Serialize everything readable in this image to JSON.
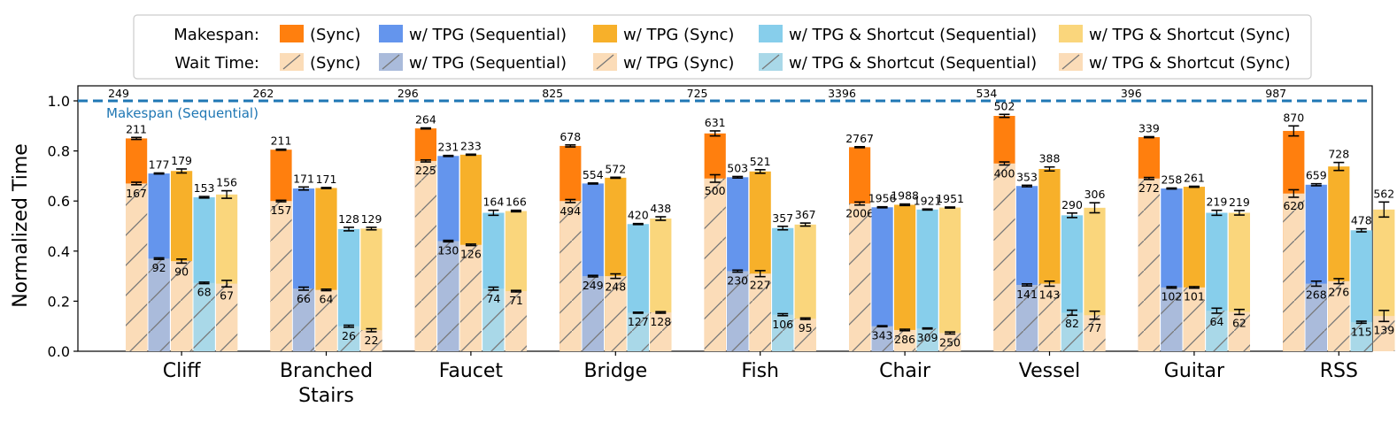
{
  "chart_data": {
    "type": "bar",
    "ylabel": "Normalized Time",
    "ylim": [
      0,
      1.05
    ],
    "yticks": [
      "0.0",
      "0.2",
      "0.4",
      "0.6",
      "0.8",
      "1.0"
    ],
    "grid": false,
    "legend_position": "top-center",
    "legend": {
      "makespan_label": "Makespan:",
      "wait_label": "Wait Time:",
      "entries": [
        "(Sync)",
        "w/ TPG (Sequential)",
        "w/ TPG (Sync)",
        "w/ TPG & Shortcut (Sequential)",
        "w/ TPG & Shortcut (Sync)"
      ]
    },
    "reference_line": {
      "label": "Makespan (Sequential)",
      "value": 1.0,
      "color": "#1f77b4"
    },
    "categories": [
      "Cliff",
      "Branched\nStairs",
      "Faucet",
      "Bridge",
      "Fish",
      "Chair",
      "Vessel",
      "Guitar",
      "RSS"
    ],
    "sequential_makespan": [
      249,
      262,
      296,
      825,
      725,
      3396,
      534,
      396,
      987
    ],
    "colors": [
      "#ff7f0e",
      "#6495ed",
      "#f7b02a",
      "#87ceeb",
      "#fad67c"
    ],
    "wait_colors": [
      "#fbdcb8",
      "#aabbdb",
      "#fbdcb8",
      "#a9d8e8",
      "#fbdcb8"
    ],
    "series": [
      {
        "name": "(Sync)",
        "makespan": [
          0.85,
          0.805,
          0.89,
          0.82,
          0.87,
          0.815,
          0.94,
          0.855,
          0.88
        ],
        "makespan_labels": [
          "211",
          "211",
          "264",
          "678",
          "631",
          "2767",
          "502",
          "339",
          "870"
        ],
        "makespan_err": [
          0.004,
          0.002,
          0.002,
          0.004,
          0.01,
          0.002,
          0.006,
          0.002,
          0.02
        ],
        "wait": [
          0.67,
          0.6,
          0.76,
          0.6,
          0.69,
          0.59,
          0.75,
          0.69,
          0.63
        ],
        "wait_labels": [
          "167",
          "157",
          "225",
          "494",
          "500",
          "2006",
          "400",
          "272",
          "620"
        ],
        "wait_err": [
          0.005,
          0.003,
          0.004,
          0.006,
          0.015,
          0.006,
          0.006,
          0.004,
          0.015
        ]
      },
      {
        "name": "w/ TPG (Sequential)",
        "makespan": [
          0.71,
          0.65,
          0.78,
          0.67,
          0.695,
          0.575,
          0.66,
          0.65,
          0.665
        ],
        "makespan_labels": [
          "177",
          "171",
          "231",
          "554",
          "503",
          "1956",
          "353",
          "258",
          "659"
        ],
        "makespan_err": [
          0.002,
          0.006,
          0.002,
          0.002,
          0.003,
          0.002,
          0.003,
          0.002,
          0.004
        ],
        "wait": [
          0.37,
          0.25,
          0.44,
          0.3,
          0.32,
          0.1,
          0.265,
          0.255,
          0.27
        ],
        "wait_labels": [
          "92",
          "66",
          "130",
          "249",
          "230",
          "343",
          "141",
          "102",
          "268"
        ],
        "wait_err": [
          0.003,
          0.006,
          0.003,
          0.003,
          0.004,
          0.002,
          0.004,
          0.003,
          0.01
        ]
      },
      {
        "name": "w/ TPG (Sync)",
        "makespan": [
          0.72,
          0.652,
          0.785,
          0.693,
          0.718,
          0.585,
          0.728,
          0.657,
          0.738
        ],
        "makespan_labels": [
          "179",
          "171",
          "233",
          "572",
          "521",
          "1988",
          "388",
          "261",
          "728"
        ],
        "makespan_err": [
          0.008,
          0.002,
          0.002,
          0.002,
          0.007,
          0.003,
          0.008,
          0.002,
          0.016
        ],
        "wait": [
          0.36,
          0.245,
          0.425,
          0.3,
          0.31,
          0.085,
          0.27,
          0.255,
          0.28
        ],
        "wait_labels": [
          "90",
          "64",
          "126",
          "248",
          "227",
          "286",
          "143",
          "101",
          "276"
        ],
        "wait_err": [
          0.008,
          0.003,
          0.003,
          0.009,
          0.012,
          0.003,
          0.01,
          0.003,
          0.01
        ]
      },
      {
        "name": "w/ TPG & Shortcut (Sequential)",
        "makespan": [
          0.615,
          0.488,
          0.553,
          0.508,
          0.492,
          0.566,
          0.543,
          0.553,
          0.483
        ],
        "makespan_labels": [
          "153",
          "128",
          "164",
          "420",
          "357",
          "1921",
          "290",
          "219",
          "478"
        ],
        "makespan_err": [
          0.003,
          0.007,
          0.01,
          0.002,
          0.007,
          0.002,
          0.009,
          0.01,
          0.006
        ],
        "wait": [
          0.273,
          0.1,
          0.25,
          0.154,
          0.146,
          0.091,
          0.154,
          0.162,
          0.116
        ],
        "wait_labels": [
          "68",
          "26",
          "74",
          "127",
          "106",
          "309",
          "82",
          "64",
          "115"
        ],
        "wait_err": [
          0.003,
          0.004,
          0.006,
          0.002,
          0.004,
          0.002,
          0.01,
          0.01,
          0.004
        ]
      },
      {
        "name": "w/ TPG & Shortcut (Sync)",
        "makespan": [
          0.626,
          0.49,
          0.56,
          0.53,
          0.506,
          0.574,
          0.573,
          0.553,
          0.566
        ],
        "makespan_labels": [
          "156",
          "129",
          "166",
          "438",
          "367",
          "1951",
          "306",
          "219",
          "562"
        ],
        "makespan_err": [
          0.015,
          0.005,
          0.003,
          0.007,
          0.006,
          0.002,
          0.02,
          0.009,
          0.03
        ],
        "wait": [
          0.27,
          0.084,
          0.24,
          0.155,
          0.13,
          0.073,
          0.144,
          0.157,
          0.141
        ],
        "wait_labels": [
          "67",
          "22",
          "71",
          "128",
          "95",
          "250",
          "77",
          "62",
          "139"
        ],
        "wait_err": [
          0.013,
          0.006,
          0.003,
          0.003,
          0.003,
          0.004,
          0.016,
          0.01,
          0.022
        ]
      }
    ]
  }
}
